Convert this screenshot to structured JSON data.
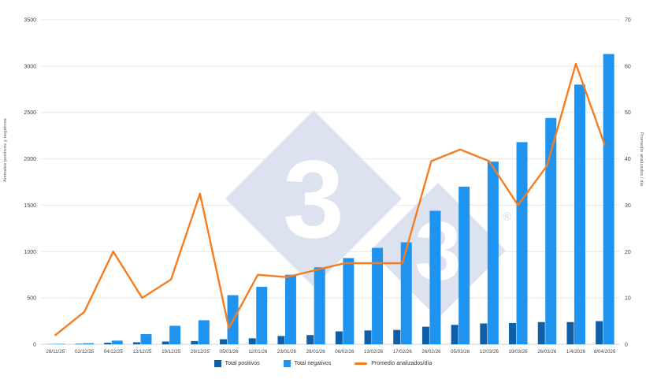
{
  "chart_data": {
    "type": "bar",
    "combo": "bar+line",
    "categories": [
      "28/11/25",
      "02/12/25",
      "04/12/25",
      "12/12/25",
      "19/12/25",
      "29/12/25",
      "05/01/26",
      "12/01/26",
      "23/01/26",
      "29/01/26",
      "06/02/26",
      "13/02/26",
      "17/02/26",
      "26/02/26",
      "05/03/26",
      "12/03/26",
      "19/03/26",
      "26/03/26",
      "1/4/2026",
      "8/04/2026"
    ],
    "series": [
      {
        "name": "Total positivos",
        "type": "bar",
        "axis": "left",
        "color": "#0f5fa8",
        "values": [
          2,
          6,
          18,
          22,
          30,
          35,
          55,
          65,
          90,
          100,
          140,
          150,
          155,
          190,
          210,
          225,
          230,
          240,
          240,
          250
        ]
      },
      {
        "name": "Total negativos",
        "type": "bar",
        "axis": "left",
        "color": "#1e93f0",
        "values": [
          5,
          12,
          40,
          110,
          200,
          260,
          530,
          620,
          750,
          830,
          930,
          1040,
          1100,
          1440,
          1700,
          1970,
          2180,
          2440,
          2800,
          3130
        ]
      },
      {
        "name": "Promedio analizados/día",
        "type": "line",
        "axis": "right",
        "color": "#f57d1f",
        "values": [
          2,
          7,
          20,
          10,
          14,
          32.5,
          3.5,
          15,
          14.5,
          16,
          17.5,
          17.5,
          17.5,
          39.5,
          42,
          39.5,
          30,
          38.5,
          60.5,
          43
        ]
      }
    ],
    "left_axis": {
      "label": "Animales positivos y negativos",
      "min": 0,
      "max": 3500,
      "step": 500
    },
    "right_axis": {
      "label": "Promedio analizados / dia",
      "min": 0,
      "max": 70,
      "step": 10
    },
    "legend_position": "bottom",
    "grid": true
  },
  "watermark": {
    "glyph": "3",
    "registered": "®",
    "color": "#dde2f1"
  }
}
